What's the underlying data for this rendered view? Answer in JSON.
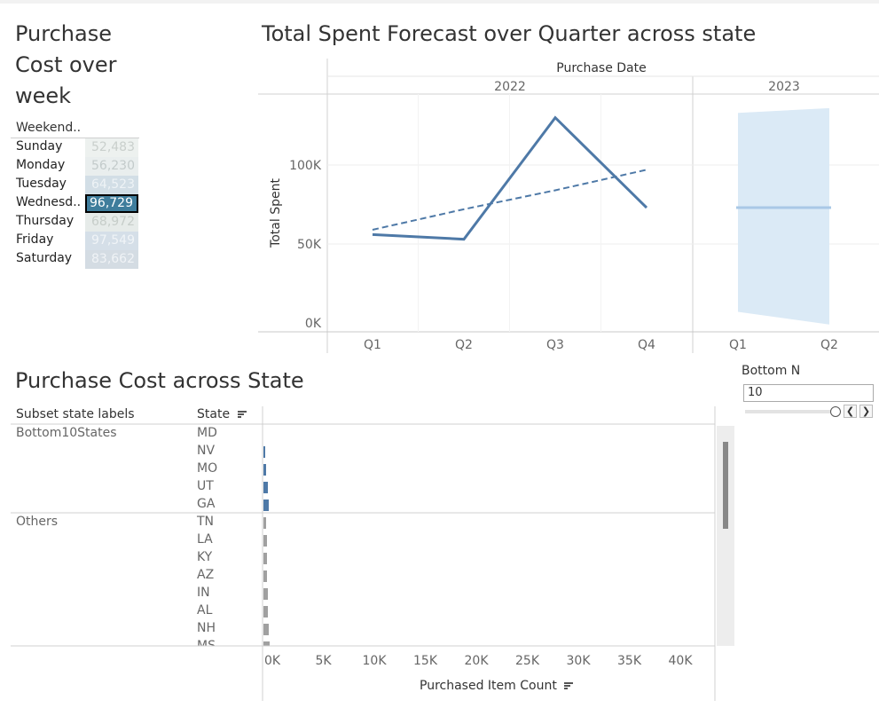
{
  "week_panel": {
    "title_line1": "Purchase",
    "title_line2": "Cost over",
    "title_line3": "week",
    "header": "Weekend..",
    "rows": [
      {
        "day": "Sunday",
        "value": "52,483",
        "bg": "#edf1ef",
        "fg": "#c9cfcc"
      },
      {
        "day": "Monday",
        "value": "56,230",
        "bg": "#e9eeee",
        "fg": "#c3cbcb"
      },
      {
        "day": "Tuesday",
        "value": "64,523",
        "bg": "#d2dee6",
        "fg": "#eef3f6"
      },
      {
        "day": "Wednesd..",
        "value": "96,729",
        "bg": "#3f7d9c",
        "fg": "#ffffff",
        "selected": true
      },
      {
        "day": "Thursday",
        "value": "68,972",
        "bg": "#e6ebe9",
        "fg": "#c6cdc9"
      },
      {
        "day": "Friday",
        "value": "97,549",
        "bg": "#d5dfe8",
        "fg": "#f0f4f7"
      },
      {
        "day": "Saturday",
        "value": "83,662",
        "bg": "#d4dce3",
        "fg": "#f0f3f6"
      }
    ]
  },
  "forecast": {
    "title": "Total Spent Forecast over Quarter across state",
    "header": "Purchase Date",
    "years": [
      "2022",
      "2023"
    ],
    "y_axis_title": "Total Spent",
    "y_ticks": [
      "0K",
      "50K",
      "100K"
    ],
    "x_ticks": [
      "Q1",
      "Q2",
      "Q3",
      "Q4",
      "Q1",
      "Q2"
    ],
    "colors": {
      "actual": "#4e79a7",
      "forecast_band": "#dbeaf6",
      "forecast_line": "#a9c8e6"
    }
  },
  "chart_data": [
    {
      "type": "heatmap",
      "title": "Purchase Cost over week",
      "categories": [
        "Sunday",
        "Monday",
        "Tuesday",
        "Wednesd..",
        "Thursday",
        "Friday",
        "Saturday"
      ],
      "values": [
        52483,
        56230,
        64523,
        96729,
        68972,
        97549,
        83662
      ]
    },
    {
      "type": "line",
      "title": "Total Spent Forecast over Quarter across state",
      "xlabel": "Purchase Date",
      "ylabel": "Total Spent",
      "x": [
        "2022 Q1",
        "2022 Q2",
        "2022 Q3",
        "2022 Q4",
        "2023 Q1",
        "2023 Q2"
      ],
      "ylim": [
        0,
        150000
      ],
      "series": [
        {
          "values": [
            56000,
            53000,
            130000,
            73000,
            null,
            null
          ]
        },
        {
          "values": [
            59000,
            72000,
            84000,
            97000,
            null,
            null
          ]
        },
        {
          "values": [
            null,
            null,
            null,
            null,
            73000,
            73000
          ]
        }
      ],
      "forecast_band": {
        "x": [
          "2023 Q1",
          "2023 Q2"
        ],
        "lower": [
          7000,
          -1000
        ],
        "upper": [
          133000,
          136000
        ]
      }
    },
    {
      "type": "bar",
      "title": "Purchase Cost across State",
      "xlabel": "Purchased Item Count",
      "xlim": [
        0,
        45000
      ],
      "categories": [
        "MD",
        "NV",
        "MO",
        "UT",
        "GA",
        "TN",
        "LA",
        "KY",
        "AZ",
        "IN",
        "AL",
        "NH",
        "MS"
      ],
      "groups": [
        {
          "name": "Bottom10States",
          "states": [
            "MD",
            "NV",
            "MO",
            "UT",
            "GA"
          ]
        },
        {
          "name": "Others",
          "states": [
            "TN",
            "LA",
            "KY",
            "AZ",
            "IN",
            "AL",
            "NH",
            "MS"
          ]
        }
      ],
      "values": [
        0,
        150,
        250,
        400,
        550,
        280,
        350,
        370,
        380,
        400,
        420,
        550,
        600
      ]
    }
  ],
  "state_panel": {
    "title": "Purchase Cost across State",
    "col_subset": "Subset state labels",
    "col_state": "State",
    "group1": "Bottom10States",
    "group2": "Others",
    "x_axis_title": "Purchased Item Count",
    "x_ticks": [
      "0K",
      "5K",
      "10K",
      "15K",
      "20K",
      "25K",
      "30K",
      "35K",
      "40K"
    ],
    "colors": {
      "bottom": "#4e79a7",
      "others": "#a0a0a0"
    }
  },
  "param": {
    "label": "Bottom N",
    "value": "10",
    "prev": "❮",
    "next": "❯"
  }
}
